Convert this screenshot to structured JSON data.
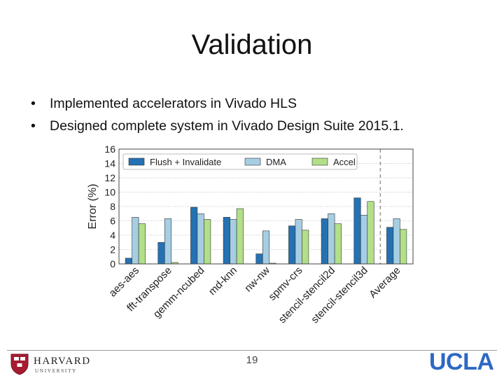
{
  "slide": {
    "title": "Validation",
    "bullets": [
      "Implemented accelerators in Vivado HLS",
      "Designed complete system in Vivado Design Suite 2015.1."
    ],
    "page_number": "19"
  },
  "logos": {
    "left_name": "HARVARD",
    "left_sub": "UNIVERSITY",
    "right": "UCLA"
  },
  "colors": {
    "flush": "#2471b3",
    "dma": "#a6cee3",
    "accel": "#b2df8a",
    "harvard_crimson": "#a51c30",
    "ucla_blue": "#2d68c4"
  },
  "chart_data": {
    "type": "bar",
    "categories": [
      "aes-aes",
      "fft-transpose",
      "gemm-ncubed",
      "md-knn",
      "nw-nw",
      "spmv-crs",
      "stencil-stencil2d",
      "stencil-stencil3d",
      "Average"
    ],
    "series": [
      {
        "name": "Flush + Invalidate",
        "values": [
          0.8,
          3.0,
          7.9,
          6.5,
          1.4,
          5.3,
          6.3,
          9.2,
          5.1
        ]
      },
      {
        "name": "DMA",
        "values": [
          6.5,
          6.3,
          7.0,
          6.2,
          4.6,
          6.2,
          7.0,
          6.8,
          6.3
        ]
      },
      {
        "name": "Accel",
        "values": [
          5.6,
          0.2,
          6.2,
          7.7,
          0.1,
          4.7,
          5.6,
          8.7,
          4.8
        ]
      }
    ],
    "ylabel": "Error (%)",
    "xlabel": "",
    "ylim": [
      0,
      16
    ],
    "yticks": [
      "0",
      "2",
      "4",
      "6",
      "8",
      "10",
      "12",
      "14",
      "16"
    ],
    "grid": true,
    "legend_position": "top",
    "separator_before": "Average"
  }
}
